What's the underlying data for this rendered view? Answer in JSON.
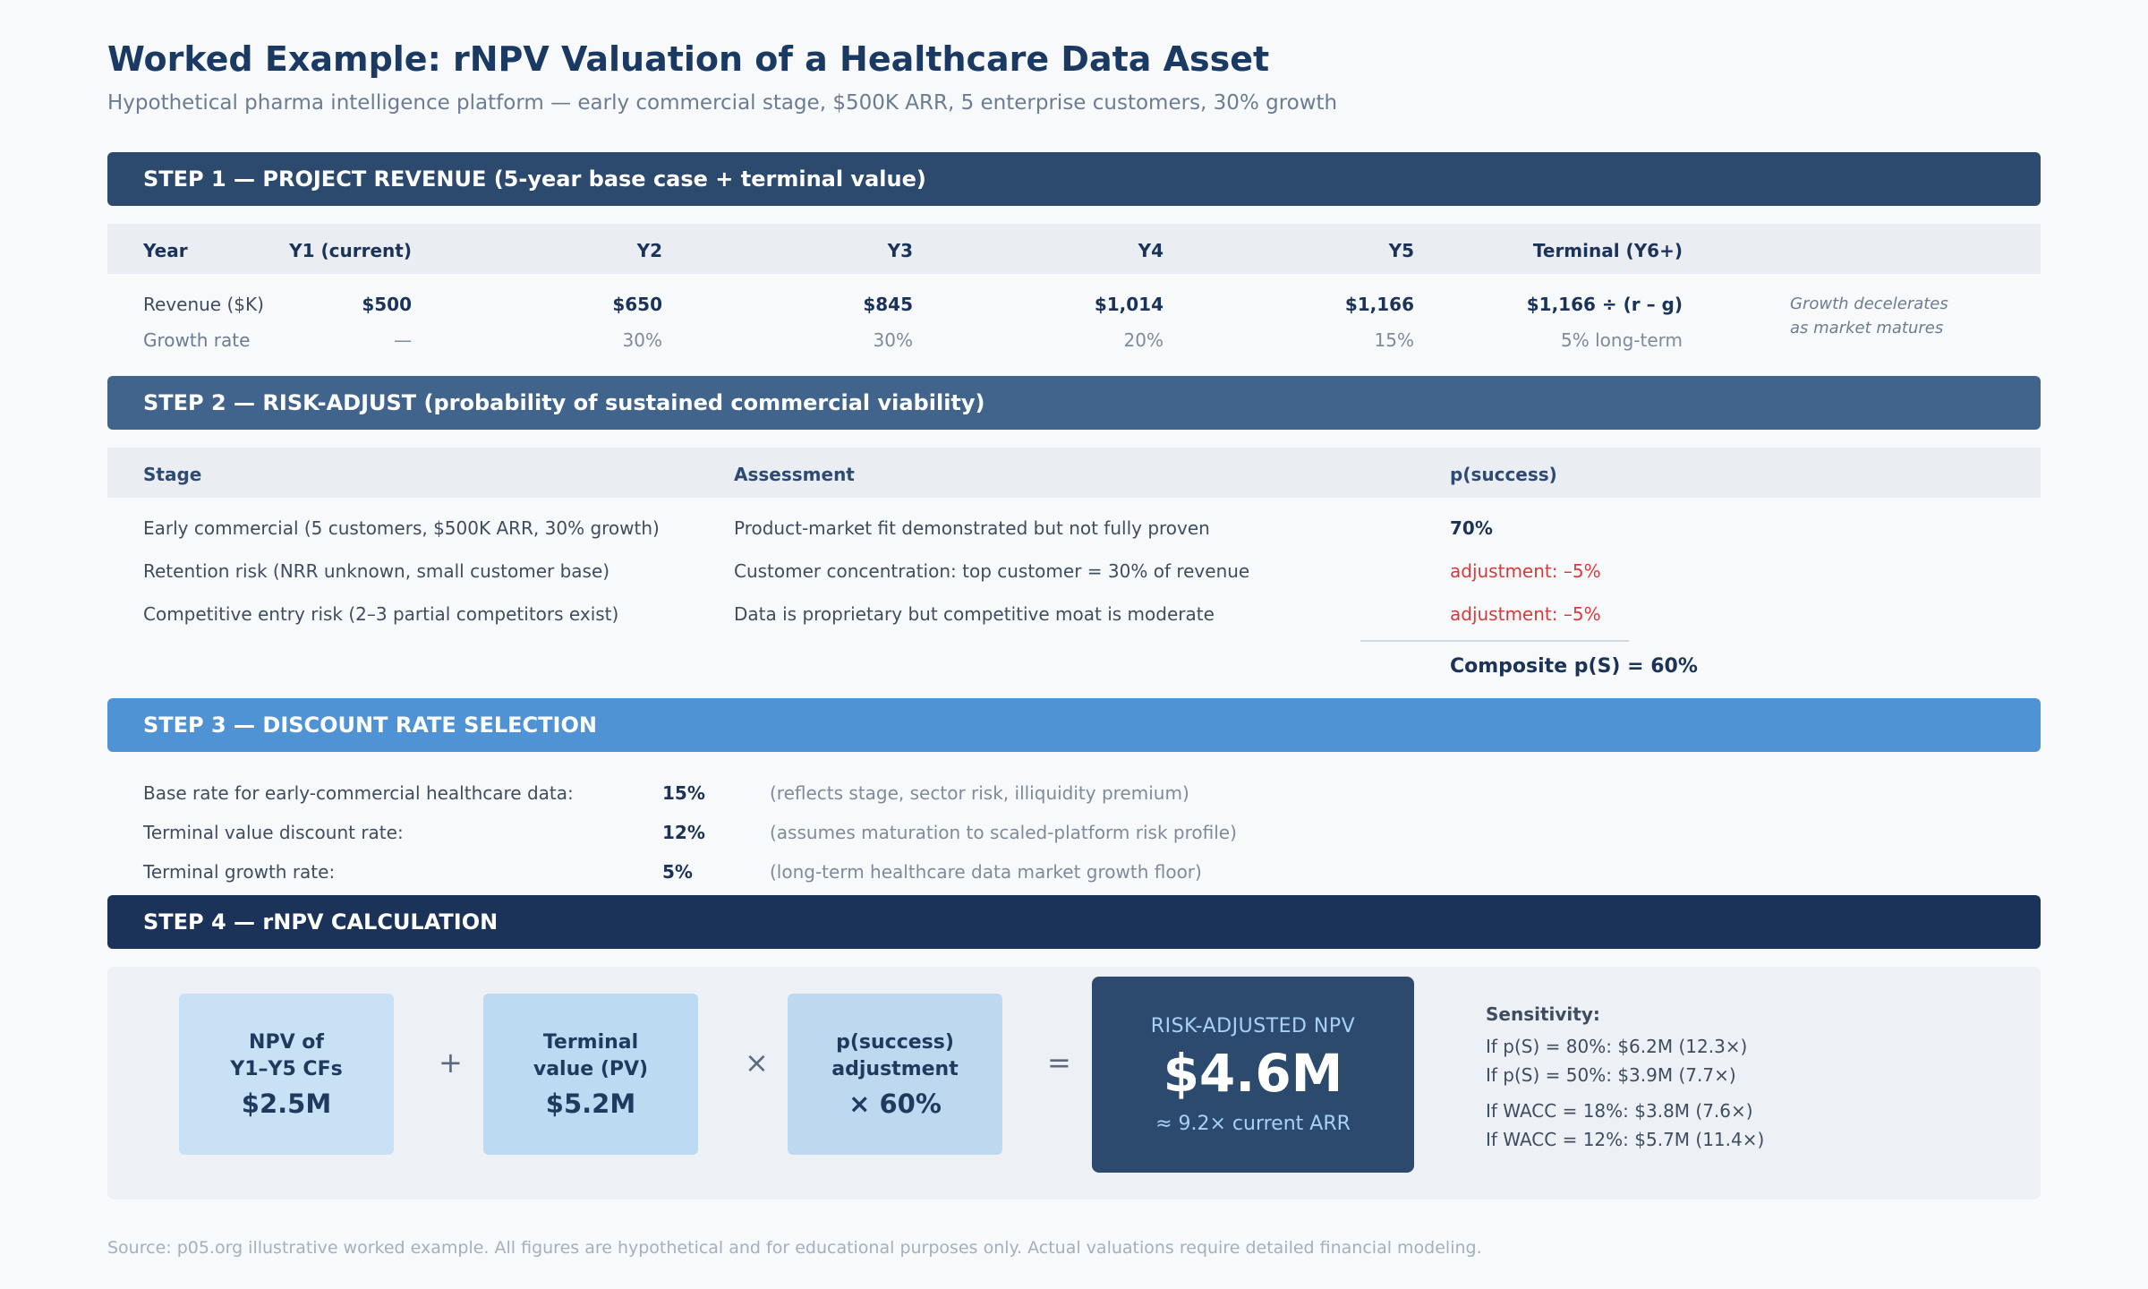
{
  "title": "Worked Example: rNPV Valuation of a Healthcare Data Asset",
  "subtitle": "Hypothetical pharma intelligence platform — early commercial stage, $500K ARR, 5 enterprise customers, 30% growth",
  "colors": {
    "step1": "#2c4a6e",
    "step2": "#41648c",
    "step3": "#4f93d4",
    "step4": "#1b3358",
    "negative": "#d63b3b"
  },
  "step1": {
    "heading": "STEP 1 — PROJECT REVENUE (5-year base case + terminal value)",
    "headers": [
      "Year",
      "Y1 (current)",
      "Y2",
      "Y3",
      "Y4",
      "Y5",
      "Terminal (Y6+)"
    ],
    "revenue_label": "Revenue ($K)",
    "revenue": [
      "$500",
      "$650",
      "$845",
      "$1,014",
      "$1,166",
      "$1,166 ÷ (r – g)"
    ],
    "growth_label": "Growth rate",
    "growth": [
      "—",
      "30%",
      "30%",
      "20%",
      "15%",
      "5% long-term"
    ],
    "note_line1": "Growth decelerates",
    "note_line2": "as market matures"
  },
  "step2": {
    "heading": "STEP 2 — RISK-ADJUST (probability of sustained commercial viability)",
    "headers": [
      "Stage",
      "Assessment",
      "p(success)"
    ],
    "rows": [
      {
        "stage": "Early commercial (5 customers, $500K ARR, 30% growth)",
        "assessment": "Product-market fit demonstrated but not fully proven",
        "p": "70%"
      },
      {
        "stage": "Retention risk (NRR unknown, small customer base)",
        "assessment": "Customer concentration: top customer = 30% of revenue",
        "p": "adjustment: –5%"
      },
      {
        "stage": "Competitive entry risk (2–3 partial competitors exist)",
        "assessment": "Data is proprietary but competitive moat is moderate",
        "p": "adjustment: –5%"
      }
    ],
    "composite": "Composite p(S) = 60%"
  },
  "step3": {
    "heading": "STEP 3 — DISCOUNT RATE SELECTION",
    "rows": [
      {
        "label": "Base rate for early-commercial healthcare data:",
        "value": "15%",
        "note": "(reflects stage, sector risk, illiquidity premium)"
      },
      {
        "label": "Terminal value discount rate:",
        "value": "12%",
        "note": "(assumes maturation to scaled-platform risk profile)"
      },
      {
        "label": "Terminal growth rate:",
        "value": "5%",
        "note": "(long-term healthcare data market growth floor)"
      }
    ]
  },
  "step4": {
    "heading": "STEP 4 — rNPV CALCULATION",
    "boxes": [
      {
        "line1": "NPV of",
        "line2": "Y1–Y5 CFs",
        "value": "$2.5M",
        "color": "#c9e1f4"
      },
      {
        "line1": "Terminal",
        "line2": "value (PV)",
        "value": "$5.2M",
        "color": "#bcdaf2"
      },
      {
        "line1": "p(success)",
        "line2": "adjustment",
        "value": "× 60%",
        "color": "#bed8ef"
      }
    ],
    "ops": [
      "+",
      "×",
      "="
    ],
    "result_label": "RISK-ADJUSTED NPV",
    "result_value": "$4.6M",
    "result_sub": "≈ 9.2× current ARR",
    "sensitivity_title": "Sensitivity:",
    "sensitivity": [
      "If p(S) = 80%: $6.2M (12.3×)",
      "If p(S) = 50%: $3.9M (7.7×)",
      "If WACC = 18%: $3.8M (7.6×)",
      "If WACC = 12%: $5.7M (11.4×)"
    ]
  },
  "source": "Source: p05.org illustrative worked example. All figures are hypothetical and for educational purposes only. Actual valuations require detailed financial modeling."
}
